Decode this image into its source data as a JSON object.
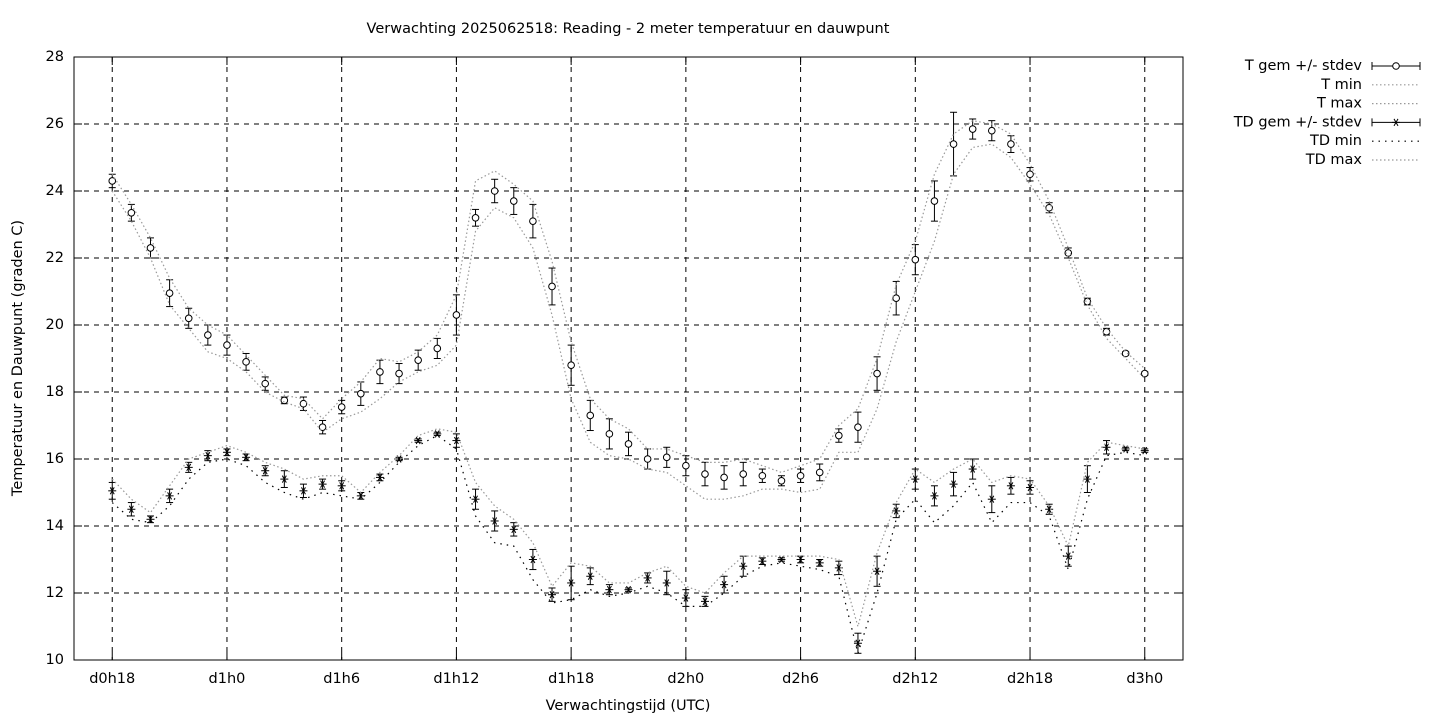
{
  "chart_data": {
    "type": "errorbar-line",
    "title": "Verwachting 2025062518: Reading - 2 meter temperatuur en dauwpunt",
    "x_label": "Verwachtingstijd (UTC)",
    "y_label": "Temperatuur en Dauwpunt (graden C)",
    "xlim": [
      16,
      74
    ],
    "ylim": [
      10,
      28
    ],
    "xticks": [
      {
        "value": 18,
        "label": "d0h18"
      },
      {
        "value": 24,
        "label": "d1h0"
      },
      {
        "value": 30,
        "label": "d1h6"
      },
      {
        "value": 36,
        "label": "d1h12"
      },
      {
        "value": 42,
        "label": "d1h18"
      },
      {
        "value": 48,
        "label": "d2h0"
      },
      {
        "value": 54,
        "label": "d2h6"
      },
      {
        "value": 60,
        "label": "d2h12"
      },
      {
        "value": 66,
        "label": "d2h18"
      },
      {
        "value": 72,
        "label": "d3h0"
      }
    ],
    "yticks": [
      10,
      12,
      14,
      16,
      18,
      20,
      22,
      24,
      26,
      28
    ],
    "grid": true,
    "legend": "right",
    "x": [
      18,
      19,
      20,
      21,
      22,
      23,
      24,
      25,
      26,
      27,
      28,
      29,
      30,
      31,
      32,
      33,
      34,
      35,
      36,
      37,
      38,
      39,
      40,
      41,
      42,
      43,
      44,
      45,
      46,
      47,
      48,
      49,
      50,
      51,
      52,
      53,
      54,
      55,
      56,
      57,
      58,
      59,
      60,
      61,
      62,
      63,
      64,
      65,
      66,
      67,
      68,
      69,
      70,
      71,
      72
    ],
    "series": [
      {
        "name": "T gem +/- stdev",
        "color": "#000000",
        "marker": "circle",
        "dash": "none",
        "values": [
          24.3,
          23.35,
          22.3,
          20.95,
          20.2,
          19.7,
          19.4,
          18.9,
          18.25,
          17.75,
          17.65,
          16.95,
          17.55,
          17.95,
          18.6,
          18.55,
          18.95,
          19.3,
          20.3,
          23.2,
          24.0,
          23.7,
          23.1,
          21.15,
          18.8,
          17.3,
          16.75,
          16.45,
          16.0,
          16.05,
          15.8,
          15.55,
          15.45,
          15.55,
          15.5,
          15.35,
          15.5,
          15.6,
          16.7,
          16.95,
          18.55,
          20.8,
          21.95,
          23.7,
          25.4,
          25.85,
          25.8,
          25.4,
          24.5,
          23.5,
          22.15,
          20.7,
          19.8,
          19.15,
          18.55
        ],
        "errors": [
          0.2,
          0.25,
          0.3,
          0.4,
          0.3,
          0.3,
          0.3,
          0.25,
          0.2,
          0.1,
          0.2,
          0.2,
          0.2,
          0.35,
          0.35,
          0.3,
          0.3,
          0.3,
          0.6,
          0.25,
          0.35,
          0.4,
          0.5,
          0.55,
          0.6,
          0.45,
          0.45,
          0.35,
          0.3,
          0.3,
          0.3,
          0.35,
          0.35,
          0.35,
          0.2,
          0.15,
          0.2,
          0.25,
          0.2,
          0.45,
          0.5,
          0.5,
          0.45,
          0.6,
          0.95,
          0.3,
          0.3,
          0.25,
          0.2,
          0.15,
          0.15,
          0.1,
          0.1,
          0.05,
          0.05
        ]
      },
      {
        "name": "T min",
        "color": "#999999",
        "marker": "none",
        "dash": "dotted",
        "values": [
          24.0,
          23.1,
          22.0,
          20.6,
          19.9,
          19.2,
          19.0,
          18.6,
          18.0,
          17.7,
          17.5,
          16.8,
          17.2,
          17.4,
          17.8,
          18.3,
          18.6,
          18.8,
          19.4,
          22.8,
          23.5,
          23.2,
          22.3,
          20.3,
          17.8,
          16.5,
          16.1,
          16.0,
          15.7,
          15.6,
          15.2,
          14.8,
          14.8,
          14.9,
          15.1,
          15.1,
          15.0,
          15.1,
          16.2,
          16.2,
          17.5,
          19.5,
          21.0,
          22.5,
          24.5,
          25.3,
          25.4,
          25.0,
          24.2,
          23.3,
          22.0,
          20.6,
          19.6,
          19.0,
          18.4
        ]
      },
      {
        "name": "T max",
        "color": "#999999",
        "marker": "none",
        "dash": "dotted",
        "values": [
          24.5,
          23.6,
          22.6,
          21.4,
          20.5,
          20.0,
          19.7,
          19.1,
          18.5,
          17.9,
          17.8,
          17.2,
          17.8,
          18.3,
          19.0,
          18.9,
          19.2,
          19.7,
          20.9,
          24.3,
          24.6,
          24.2,
          23.7,
          21.9,
          19.5,
          17.8,
          17.2,
          16.9,
          16.3,
          16.3,
          16.1,
          15.9,
          15.9,
          16.0,
          15.8,
          15.6,
          15.8,
          16.0,
          17.0,
          17.5,
          19.0,
          21.2,
          22.5,
          24.5,
          25.7,
          26.1,
          26.0,
          25.7,
          24.8,
          23.7,
          22.3,
          20.8,
          19.9,
          19.2,
          18.7
        ]
      },
      {
        "name": "TD gem +/- stdev",
        "color": "#000000",
        "marker": "star",
        "dash": "none",
        "values": [
          15.05,
          14.5,
          14.2,
          14.9,
          15.75,
          16.1,
          16.2,
          16.05,
          15.65,
          15.4,
          15.05,
          15.25,
          15.2,
          14.9,
          15.45,
          16.0,
          16.55,
          16.75,
          16.55,
          14.8,
          14.15,
          13.9,
          13.0,
          11.95,
          12.3,
          12.5,
          12.1,
          12.1,
          12.45,
          12.3,
          11.85,
          11.75,
          12.25,
          12.8,
          12.95,
          13.0,
          13.0,
          12.9,
          12.75,
          10.5,
          12.65,
          14.45,
          15.4,
          14.9,
          15.25,
          15.7,
          14.8,
          15.2,
          15.15,
          14.5,
          13.1,
          15.4,
          16.35,
          16.3,
          16.25
        ],
        "errors": [
          0.25,
          0.2,
          0.1,
          0.2,
          0.15,
          0.15,
          0.1,
          0.1,
          0.15,
          0.25,
          0.2,
          0.15,
          0.15,
          0.1,
          0.1,
          0.05,
          0.05,
          0.05,
          0.2,
          0.3,
          0.3,
          0.2,
          0.3,
          0.2,
          0.5,
          0.25,
          0.15,
          0.05,
          0.15,
          0.35,
          0.25,
          0.15,
          0.25,
          0.3,
          0.1,
          0.05,
          0.1,
          0.1,
          0.2,
          0.3,
          0.45,
          0.2,
          0.3,
          0.3,
          0.35,
          0.3,
          0.4,
          0.25,
          0.2,
          0.15,
          0.3,
          0.4,
          0.2,
          0.05,
          0.05
        ]
      },
      {
        "name": "TD min",
        "color": "#000000",
        "marker": "none",
        "dash": "sparse",
        "values": [
          14.7,
          14.2,
          14.1,
          14.6,
          15.4,
          15.9,
          16.0,
          15.8,
          15.3,
          15.0,
          14.8,
          15.0,
          14.9,
          14.8,
          15.3,
          15.9,
          16.4,
          16.7,
          16.3,
          14.3,
          13.5,
          13.4,
          12.4,
          11.7,
          11.8,
          12.1,
          11.9,
          12.0,
          12.2,
          12.0,
          11.6,
          11.6,
          12.0,
          12.5,
          12.8,
          12.9,
          12.8,
          12.7,
          12.5,
          10.2,
          12.0,
          14.2,
          14.8,
          14.1,
          14.6,
          15.3,
          14.1,
          14.7,
          14.7,
          14.3,
          12.7,
          14.8,
          16.1,
          16.2,
          16.1
        ]
      },
      {
        "name": "TD max",
        "color": "#999999",
        "marker": "none",
        "dash": "dotted",
        "values": [
          15.4,
          14.8,
          14.4,
          15.2,
          16.0,
          16.2,
          16.4,
          16.2,
          15.9,
          15.7,
          15.4,
          15.5,
          15.5,
          15.0,
          15.6,
          16.1,
          16.7,
          16.9,
          16.8,
          15.3,
          14.6,
          14.2,
          13.5,
          12.2,
          12.9,
          12.8,
          12.3,
          12.3,
          12.6,
          12.8,
          12.2,
          12.0,
          12.6,
          13.1,
          13.1,
          13.1,
          13.1,
          13.1,
          13.0,
          11.0,
          13.2,
          14.7,
          15.7,
          15.3,
          15.7,
          16.0,
          15.3,
          15.5,
          15.4,
          14.6,
          13.4,
          15.9,
          16.5,
          16.4,
          16.3
        ]
      }
    ]
  }
}
